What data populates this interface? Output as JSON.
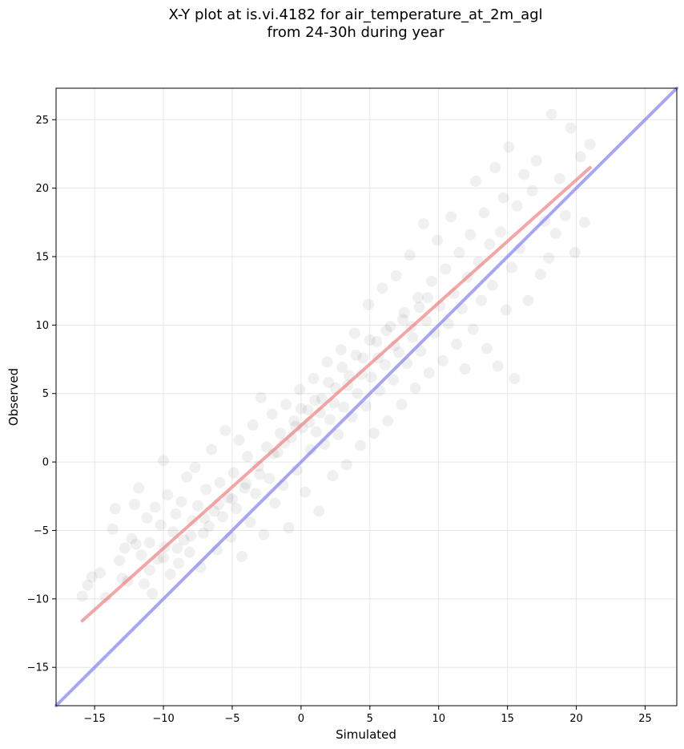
{
  "chart_data": {
    "type": "scatter",
    "title_line1": "X-Y plot at is.vi.4182 for air_temperature_at_2m_agl",
    "title_line2": "from 24-30h during year",
    "xlabel": "Simulated",
    "ylabel": "Observed",
    "xlim": [
      -17.8,
      27.3
    ],
    "ylim": [
      -17.8,
      27.3
    ],
    "xticks": [
      -15,
      -10,
      -5,
      0,
      5,
      10,
      15,
      20,
      25
    ],
    "yticks": [
      -15,
      -10,
      -5,
      0,
      5,
      10,
      15,
      20,
      25
    ],
    "xtick_labels": [
      "−15",
      "−10",
      "−5",
      "0",
      "5",
      "10",
      "15",
      "20",
      "25"
    ],
    "ytick_labels": [
      "−15",
      "−10",
      "−5",
      "0",
      "5",
      "10",
      "15",
      "20",
      "25"
    ],
    "grid": true,
    "point_color": "#000000",
    "point_alpha": 0.06,
    "points": [
      [
        -15.9,
        -9.8
      ],
      [
        -15.5,
        -9.0
      ],
      [
        -15.2,
        -8.4
      ],
      [
        -14.6,
        -8.1
      ],
      [
        -14.2,
        -9.9
      ],
      [
        -13.7,
        -4.9
      ],
      [
        -13.5,
        -3.4
      ],
      [
        -13.2,
        -7.2
      ],
      [
        -12.8,
        -6.3
      ],
      [
        -12.6,
        -8.7
      ],
      [
        -12.3,
        -5.6
      ],
      [
        -12.1,
        -3.1
      ],
      [
        -11.8,
        -1.9
      ],
      [
        -11.6,
        -6.8
      ],
      [
        -11.4,
        -8.9
      ],
      [
        -11.2,
        -4.1
      ],
      [
        -11.0,
        -5.9
      ],
      [
        -10.8,
        -9.6
      ],
      [
        -10.6,
        -3.3
      ],
      [
        -10.4,
        -7.1
      ],
      [
        -10.2,
        -4.6
      ],
      [
        -10.0,
        0.1
      ],
      [
        -9.9,
        -6.2
      ],
      [
        -9.7,
        -2.4
      ],
      [
        -9.5,
        -8.2
      ],
      [
        -9.3,
        -5.1
      ],
      [
        -9.1,
        -3.8
      ],
      [
        -8.9,
        -7.4
      ],
      [
        -8.7,
        -2.9
      ],
      [
        -8.5,
        -5.7
      ],
      [
        -8.3,
        -1.1
      ],
      [
        -8.1,
        -6.6
      ],
      [
        -7.9,
        -4.3
      ],
      [
        -7.7,
        -0.4
      ],
      [
        -7.5,
        -3.2
      ],
      [
        -7.3,
        -7.7
      ],
      [
        -7.1,
        -5.2
      ],
      [
        -6.9,
        -2.0
      ],
      [
        -6.7,
        -4.7
      ],
      [
        -6.5,
        0.9
      ],
      [
        -6.3,
        -3.6
      ],
      [
        -6.1,
        -6.4
      ],
      [
        -5.9,
        -1.5
      ],
      [
        -5.7,
        -4.0
      ],
      [
        -5.5,
        2.3
      ],
      [
        -5.3,
        -2.6
      ],
      [
        -5.1,
        -5.5
      ],
      [
        -4.9,
        -0.8
      ],
      [
        -4.7,
        -3.4
      ],
      [
        -4.5,
        1.6
      ],
      [
        -4.3,
        -6.9
      ],
      [
        -4.1,
        -1.9
      ],
      [
        -3.9,
        0.4
      ],
      [
        -3.7,
        -4.4
      ],
      [
        -3.5,
        2.7
      ],
      [
        -3.3,
        -2.3
      ],
      [
        -3.1,
        -0.3
      ],
      [
        -2.9,
        4.7
      ],
      [
        -2.7,
        -5.3
      ],
      [
        -2.5,
        1.1
      ],
      [
        -2.3,
        -1.2
      ],
      [
        -2.1,
        3.5
      ],
      [
        -1.9,
        -3.0
      ],
      [
        -1.7,
        0.7
      ],
      [
        -1.5,
        2.1
      ],
      [
        -1.3,
        -1.7
      ],
      [
        -1.1,
        4.2
      ],
      [
        -0.9,
        -4.8
      ],
      [
        -0.7,
        1.8
      ],
      [
        -0.5,
        3.0
      ],
      [
        -0.3,
        -0.6
      ],
      [
        -0.1,
        5.3
      ],
      [
        0.1,
        2.5
      ],
      [
        0.3,
        -2.2
      ],
      [
        0.5,
        3.8
      ],
      [
        0.7,
        0.9
      ],
      [
        0.9,
        6.1
      ],
      [
        1.1,
        2.2
      ],
      [
        1.3,
        -3.6
      ],
      [
        1.5,
        4.6
      ],
      [
        1.7,
        1.3
      ],
      [
        1.9,
        7.3
      ],
      [
        2.1,
        3.1
      ],
      [
        2.3,
        -1.0
      ],
      [
        2.5,
        5.4
      ],
      [
        2.7,
        2.0
      ],
      [
        2.9,
        8.2
      ],
      [
        3.1,
        4.0
      ],
      [
        3.3,
        -0.2
      ],
      [
        3.5,
        6.3
      ],
      [
        3.7,
        3.3
      ],
      [
        3.9,
        9.4
      ],
      [
        4.1,
        5.0
      ],
      [
        4.3,
        1.2
      ],
      [
        4.5,
        7.6
      ],
      [
        4.7,
        4.1
      ],
      [
        4.9,
        11.5
      ],
      [
        5.1,
        6.2
      ],
      [
        5.3,
        2.1
      ],
      [
        5.5,
        8.8
      ],
      [
        5.7,
        5.2
      ],
      [
        5.9,
        12.7
      ],
      [
        6.1,
        7.1
      ],
      [
        6.3,
        3.0
      ],
      [
        6.5,
        9.9
      ],
      [
        6.7,
        6.0
      ],
      [
        6.9,
        13.6
      ],
      [
        7.1,
        8.0
      ],
      [
        7.3,
        4.2
      ],
      [
        7.5,
        10.9
      ],
      [
        7.7,
        7.2
      ],
      [
        7.9,
        15.1
      ],
      [
        8.1,
        9.1
      ],
      [
        8.3,
        5.4
      ],
      [
        8.5,
        12.0
      ],
      [
        8.7,
        8.1
      ],
      [
        8.9,
        17.4
      ],
      [
        9.1,
        10.3
      ],
      [
        9.3,
        6.5
      ],
      [
        9.5,
        13.2
      ],
      [
        9.7,
        9.4
      ],
      [
        9.9,
        16.2
      ],
      [
        10.1,
        11.4
      ],
      [
        10.3,
        7.4
      ],
      [
        10.5,
        14.1
      ],
      [
        10.7,
        10.1
      ],
      [
        10.9,
        17.9
      ],
      [
        11.1,
        12.3
      ],
      [
        11.3,
        8.6
      ],
      [
        11.5,
        15.3
      ],
      [
        11.7,
        11.2
      ],
      [
        11.9,
        6.8
      ],
      [
        12.1,
        13.5
      ],
      [
        12.3,
        16.6
      ],
      [
        12.5,
        9.7
      ],
      [
        12.7,
        20.5
      ],
      [
        12.9,
        14.6
      ],
      [
        13.1,
        11.8
      ],
      [
        13.3,
        18.2
      ],
      [
        13.5,
        8.3
      ],
      [
        13.7,
        15.9
      ],
      [
        13.9,
        12.9
      ],
      [
        14.1,
        21.5
      ],
      [
        14.3,
        7.0
      ],
      [
        14.5,
        16.8
      ],
      [
        14.7,
        19.3
      ],
      [
        14.9,
        11.1
      ],
      [
        15.1,
        23.0
      ],
      [
        15.3,
        14.2
      ],
      [
        15.5,
        6.1
      ],
      [
        15.7,
        18.7
      ],
      [
        15.9,
        15.6
      ],
      [
        16.2,
        21.0
      ],
      [
        16.5,
        11.8
      ],
      [
        16.8,
        19.8
      ],
      [
        17.1,
        22.0
      ],
      [
        17.4,
        13.7
      ],
      [
        17.7,
        17.6
      ],
      [
        18.0,
        14.9
      ],
      [
        18.2,
        25.4
      ],
      [
        18.5,
        16.7
      ],
      [
        18.8,
        20.7
      ],
      [
        19.2,
        18.0
      ],
      [
        19.6,
        24.4
      ],
      [
        19.9,
        15.3
      ],
      [
        20.3,
        22.3
      ],
      [
        20.6,
        17.5
      ],
      [
        21.0,
        23.2
      ],
      [
        1.0,
        4.5
      ],
      [
        1.4,
        3.6
      ],
      [
        2.0,
        5.8
      ],
      [
        2.4,
        4.3
      ],
      [
        3.0,
        6.9
      ],
      [
        3.4,
        5.6
      ],
      [
        4.0,
        7.8
      ],
      [
        4.4,
        6.4
      ],
      [
        -0.4,
        2.6
      ],
      [
        0.0,
        3.9
      ],
      [
        0.6,
        2.9
      ],
      [
        -1.2,
        1.4
      ],
      [
        -2.0,
        0.6
      ],
      [
        -3.0,
        -0.9
      ],
      [
        -4.0,
        -1.6
      ],
      [
        -5.0,
        -2.7
      ],
      [
        5.0,
        8.9
      ],
      [
        5.6,
        7.6
      ],
      [
        6.2,
        9.6
      ],
      [
        6.8,
        8.5
      ],
      [
        7.4,
        10.4
      ],
      [
        8.0,
        9.9
      ],
      [
        8.6,
        11.3
      ],
      [
        9.2,
        12.0
      ],
      [
        -6.0,
        -3.1
      ],
      [
        -7.0,
        -4.1
      ],
      [
        -8.0,
        -5.4
      ],
      [
        -9.0,
        -6.3
      ],
      [
        -10.0,
        -7.0
      ],
      [
        -11.0,
        -7.9
      ],
      [
        -12.0,
        -6.0
      ],
      [
        -13.0,
        -8.5
      ]
    ],
    "series": [
      {
        "type": "line",
        "color": "#f08080",
        "alpha": 0.7,
        "x": [
          -15.9,
          21.0
        ],
        "y": [
          -11.6,
          21.5
        ]
      },
      {
        "type": "line",
        "color": "#8080f0",
        "alpha": 0.7,
        "x": [
          -17.8,
          27.3
        ],
        "y": [
          -17.8,
          27.3
        ]
      }
    ]
  }
}
